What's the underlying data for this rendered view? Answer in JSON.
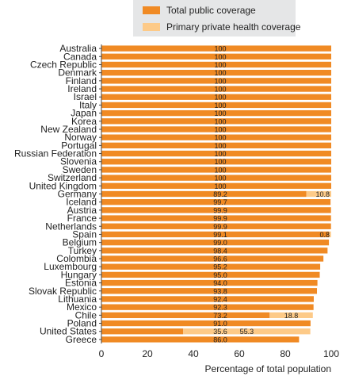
{
  "chart_data": {
    "type": "bar",
    "stacked": true,
    "orientation": "horizontal",
    "categories": [
      "Australia",
      "Canada",
      "Czech Republic",
      "Denmark",
      "Finland",
      "Ireland",
      "Israel",
      "Italy",
      "Japan",
      "Korea",
      "New Zealand",
      "Norway",
      "Portugal",
      "Russian Federation",
      "Slovenia",
      "Sweden",
      "Switzerland",
      "United Kingdom",
      "Germany",
      "Iceland",
      "Austria",
      "France",
      "Netherlands",
      "Spain",
      "Belgium",
      "Turkey",
      "Colombia",
      "Luxembourg",
      "Hungary",
      "Estonia",
      "Slovak Republic",
      "Lithuania",
      "Mexico",
      "Chile",
      "Poland",
      "United States",
      "Greece"
    ],
    "series": [
      {
        "name": "Total public coverage",
        "color": "#f08a24",
        "values": [
          100,
          100,
          100,
          100,
          100,
          100,
          100,
          100,
          100,
          100,
          100,
          100,
          100,
          100,
          100,
          100,
          100,
          100,
          89.2,
          99.7,
          99.9,
          99.9,
          99.9,
          99.1,
          99.0,
          98.4,
          96.6,
          95.2,
          95.0,
          94.0,
          93.8,
          92.4,
          92.3,
          73.2,
          91.0,
          35.6,
          86.0
        ],
        "labels": [
          "100",
          "100",
          "100",
          "100",
          "100",
          "100",
          "100",
          "100",
          "100",
          "100",
          "100",
          "100",
          "100",
          "100",
          "100",
          "100",
          "100",
          "100",
          "89.2",
          "99.7",
          "99.9",
          "99.9",
          "99.9",
          "99.1",
          "99.0",
          "98.4",
          "96.6",
          "95.2",
          "95.0",
          "94.0",
          "93.8",
          "92.4",
          "92.3",
          "73.2",
          "91.0",
          "35.6",
          "86.0"
        ]
      },
      {
        "name": "Primary private health coverage",
        "color": "#fdca88",
        "values": [
          0,
          0,
          0,
          0,
          0,
          0,
          0,
          0,
          0,
          0,
          0,
          0,
          0,
          0,
          0,
          0,
          0,
          0,
          10.8,
          0,
          0,
          0,
          0,
          0.8,
          0,
          0,
          0,
          0,
          0,
          0,
          0,
          0,
          0,
          18.8,
          0,
          55.3,
          0
        ],
        "labels": [
          "",
          "",
          "",
          "",
          "",
          "",
          "",
          "",
          "",
          "",
          "",
          "",
          "",
          "",
          "",
          "",
          "",
          "",
          "10.8",
          "",
          "",
          "",
          "",
          "0.8",
          "",
          "",
          "",
          "",
          "",
          "",
          "",
          "",
          "",
          "18.8",
          "",
          "55.3",
          ""
        ]
      }
    ],
    "xlabel": "Percentage of total population",
    "xlim": [
      0,
      100
    ],
    "xticks": [
      0,
      20,
      40,
      60,
      80,
      100
    ],
    "grid": false,
    "legend": "top"
  }
}
